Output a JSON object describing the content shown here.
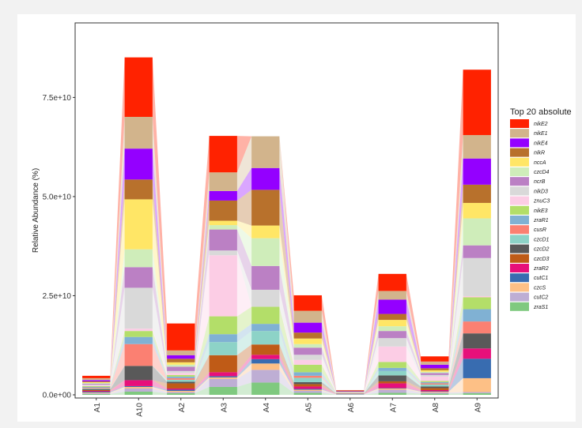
{
  "chart_data": {
    "type": "bar",
    "stacked": true,
    "flows_between_bars": true,
    "ylabel": "Relative Abundance (%)",
    "xlabel": "",
    "ylim": [
      0,
      93000000000
    ],
    "yticks": [
      0,
      25000000000,
      50000000000,
      75000000000
    ],
    "ytick_labels": [
      "0.0e+00",
      "2.5e+10",
      "5.0e+10",
      "7.5e+10"
    ],
    "categories": [
      "A1",
      "A10",
      "A2",
      "A3",
      "A4",
      "A5",
      "A6",
      "A7",
      "A8",
      "A9"
    ],
    "legend_title": "Top 20 absolute",
    "legend_position": "right",
    "series": [
      {
        "name": "nikE2",
        "color": "#FF2200",
        "values": [
          600000000.0,
          15000000000.0,
          6800000000.0,
          9200000000.0,
          0.0,
          3900000000.0,
          100000000.0,
          4300000000.0,
          1300000000.0,
          16500000000.0
        ]
      },
      {
        "name": "nikE1",
        "color": "#D2B48C",
        "values": [
          500000000.0,
          8000000000.0,
          1200000000.0,
          4700000000.0,
          8000000000.0,
          3000000000.0,
          100000000.0,
          2200000000.0,
          800000000.0,
          5900000000.0
        ]
      },
      {
        "name": "nikE4",
        "color": "#9400FF",
        "values": [
          300000000.0,
          7800000000.0,
          900000000.0,
          2400000000.0,
          5500000000.0,
          2500000000.0,
          100000000.0,
          3600000000.0,
          900000000.0,
          6600000000.0
        ]
      },
      {
        "name": "nikR",
        "color": "#B8712C",
        "values": [
          200000000.0,
          5000000000.0,
          900000000.0,
          5100000000.0,
          9000000000.0,
          1500000000.0,
          100000000.0,
          1500000000.0,
          500000000.0,
          4600000000.0
        ]
      },
      {
        "name": "nccA",
        "color": "#FFE666",
        "values": [
          200000000.0,
          12600000000.0,
          600000000.0,
          1100000000.0,
          3200000000.0,
          1400000000.0,
          50000000.0,
          1600000000.0,
          400000000.0,
          3900000000.0
        ]
      },
      {
        "name": "czcD4",
        "color": "#CFEDBA",
        "values": [
          200000000.0,
          4500000000.0,
          500000000.0,
          1100000000.0,
          7000000000.0,
          900000000.0,
          50000000.0,
          1200000000.0,
          300000000.0,
          6800000000.0
        ]
      },
      {
        "name": "ncrB",
        "color": "#BB80C4",
        "values": [
          200000000.0,
          5200000000.0,
          1100000000.0,
          5300000000.0,
          6000000000.0,
          1800000000.0,
          50000000.0,
          1800000000.0,
          500000000.0,
          3200000000.0
        ]
      },
      {
        "name": "nikD3",
        "color": "#D9D9D9",
        "values": [
          200000000.0,
          10300000000.0,
          500000000.0,
          1200000000.0,
          4300000000.0,
          1300000000.0,
          50000000.0,
          2100000000.0,
          400000000.0,
          9600000000.0
        ]
      },
      {
        "name": "znuC3",
        "color": "#FCCDE5",
        "values": [
          200000000.0,
          600000000.0,
          500000000.0,
          15400000000.0,
          0.0,
          1200000000.0,
          50000000.0,
          3900000000.0,
          1100000000.0,
          300000000.0
        ]
      },
      {
        "name": "nikE3",
        "color": "#B3DE69",
        "values": [
          200000000.0,
          1500000000.0,
          400000000.0,
          4500000000.0,
          4300000000.0,
          1900000000.0,
          50000000.0,
          1500000000.0,
          300000000.0,
          3000000000.0
        ]
      },
      {
        "name": "zraR1",
        "color": "#80B1D3",
        "values": [
          200000000.0,
          1800000000.0,
          400000000.0,
          2000000000.0,
          1800000000.0,
          900000000.0,
          50000000.0,
          800000000.0,
          300000000.0,
          3100000000.0
        ]
      },
      {
        "name": "cusR",
        "color": "#FB8072",
        "values": [
          200000000.0,
          5500000000.0,
          400000000.0,
          0.0,
          0.0,
          500000000.0,
          50000000.0,
          0.0,
          300000000.0,
          3000000000.0
        ]
      },
      {
        "name": "czcD1",
        "color": "#8DD3C7",
        "values": [
          200000000.0,
          0.0,
          500000000.0,
          3300000000.0,
          3400000000.0,
          1100000000.0,
          50000000.0,
          1100000000.0,
          500000000.0,
          0.0
        ]
      },
      {
        "name": "czcD2",
        "color": "#595959",
        "values": [
          200000000.0,
          3600000000.0,
          400000000.0,
          0.0,
          0.0,
          500000000.0,
          50000000.0,
          1500000000.0,
          400000000.0,
          3800000000.0
        ]
      },
      {
        "name": "czcD3",
        "color": "#BF5B17",
        "values": [
          200000000.0,
          0.0,
          1300000000.0,
          4300000000.0,
          2600000000.0,
          600000000.0,
          50000000.0,
          500000000.0,
          500000000.0,
          0.0
        ]
      },
      {
        "name": "zraR2",
        "color": "#E7107A",
        "values": [
          200000000.0,
          1500000000.0,
          300000000.0,
          1000000000.0,
          1100000000.0,
          600000000.0,
          50000000.0,
          1200000000.0,
          300000000.0,
          2600000000.0
        ]
      },
      {
        "name": "cutC1",
        "color": "#386CB0",
        "values": [
          200000000.0,
          200000000.0,
          300000000.0,
          300000000.0,
          1100000000.0,
          200000000.0,
          50000000.0,
          100000000.0,
          100000000.0,
          4900000000.0
        ]
      },
      {
        "name": "czcS",
        "color": "#FDC086",
        "values": [
          200000000.0,
          400000000.0,
          300000000.0,
          400000000.0,
          1600000000.0,
          300000000.0,
          50000000.0,
          300000000.0,
          200000000.0,
          3500000000.0
        ]
      },
      {
        "name": "cutC2",
        "color": "#BEAED4",
        "values": [
          200000000.0,
          800000000.0,
          300000000.0,
          2000000000.0,
          3200000000.0,
          500000000.0,
          50000000.0,
          800000000.0,
          300000000.0,
          300000000.0
        ]
      },
      {
        "name": "zraS1",
        "color": "#7FC97F",
        "values": [
          200000000.0,
          800000000.0,
          400000000.0,
          2000000000.0,
          3100000000.0,
          500000000.0,
          50000000.0,
          500000000.0,
          300000000.0,
          400000000.0
        ]
      }
    ]
  }
}
